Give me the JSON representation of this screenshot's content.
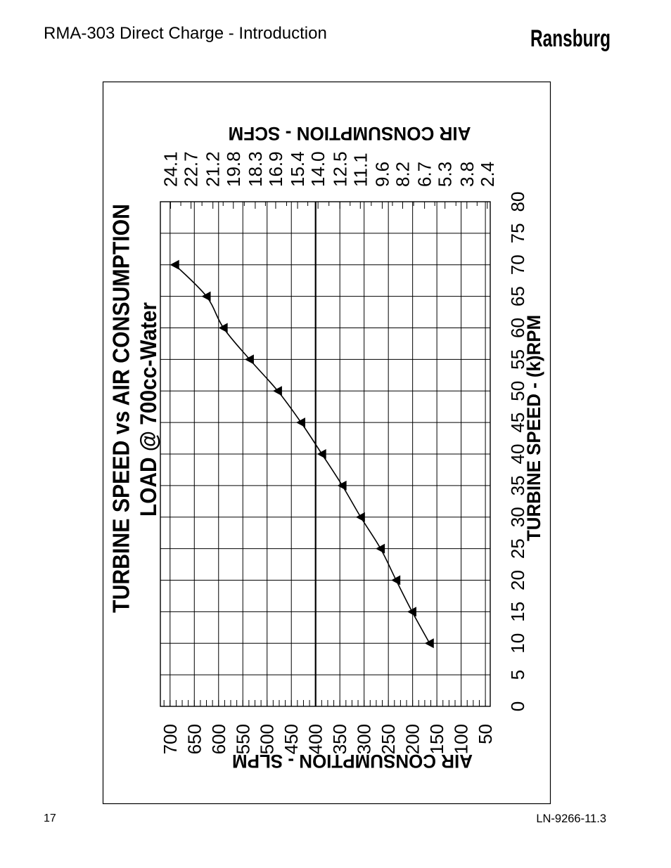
{
  "header": {
    "title": "RMA-303 Direct Charge - Introduction",
    "brand": "Ransburg"
  },
  "footer": {
    "page_number": "17",
    "doc_code": "LN-9266-11.3"
  },
  "colors": {
    "ink": "#000000",
    "paper": "#ffffff"
  },
  "chart_data": {
    "type": "line",
    "title": "TURBINE SPEED vs AIR CONSUMPTION",
    "subtitle": "LOAD @ 700cc-Water",
    "xlabel": "TURBINE SPEED - (k)RPM",
    "ylabel": "AIR CONSUMPTION - SLPM",
    "y2label": "AIR CONSUMPTION - SCFM",
    "grid": true,
    "xlim": [
      0,
      80
    ],
    "x_ticks": [
      0,
      5,
      10,
      15,
      20,
      25,
      30,
      35,
      40,
      45,
      50,
      55,
      60,
      65,
      70,
      75,
      80
    ],
    "ylim": [
      40,
      720
    ],
    "y_ticks": [
      700,
      650,
      600,
      550,
      500,
      450,
      400,
      350,
      300,
      250,
      200,
      150,
      100,
      50
    ],
    "y_minor_step": 12.5,
    "reference_line_y": 400,
    "y2lim": [
      2.2,
      24.8
    ],
    "y2_ticks": [
      "24.1",
      "22.7",
      "21.2",
      "19.8",
      "18.3",
      "16.9",
      "15.4",
      "14.0",
      "12.5",
      "11.1",
      "9.6",
      "8.2",
      "6.7",
      "5.3",
      "3.8",
      "2.4"
    ],
    "series": [
      {
        "x": [
          10,
          15,
          20,
          25,
          30,
          35,
          40,
          45,
          50,
          55,
          60,
          65,
          70
        ],
        "y": [
          165,
          201,
          234,
          266,
          307,
          345,
          387,
          430,
          478,
          536,
          590,
          625,
          690
        ]
      }
    ]
  }
}
